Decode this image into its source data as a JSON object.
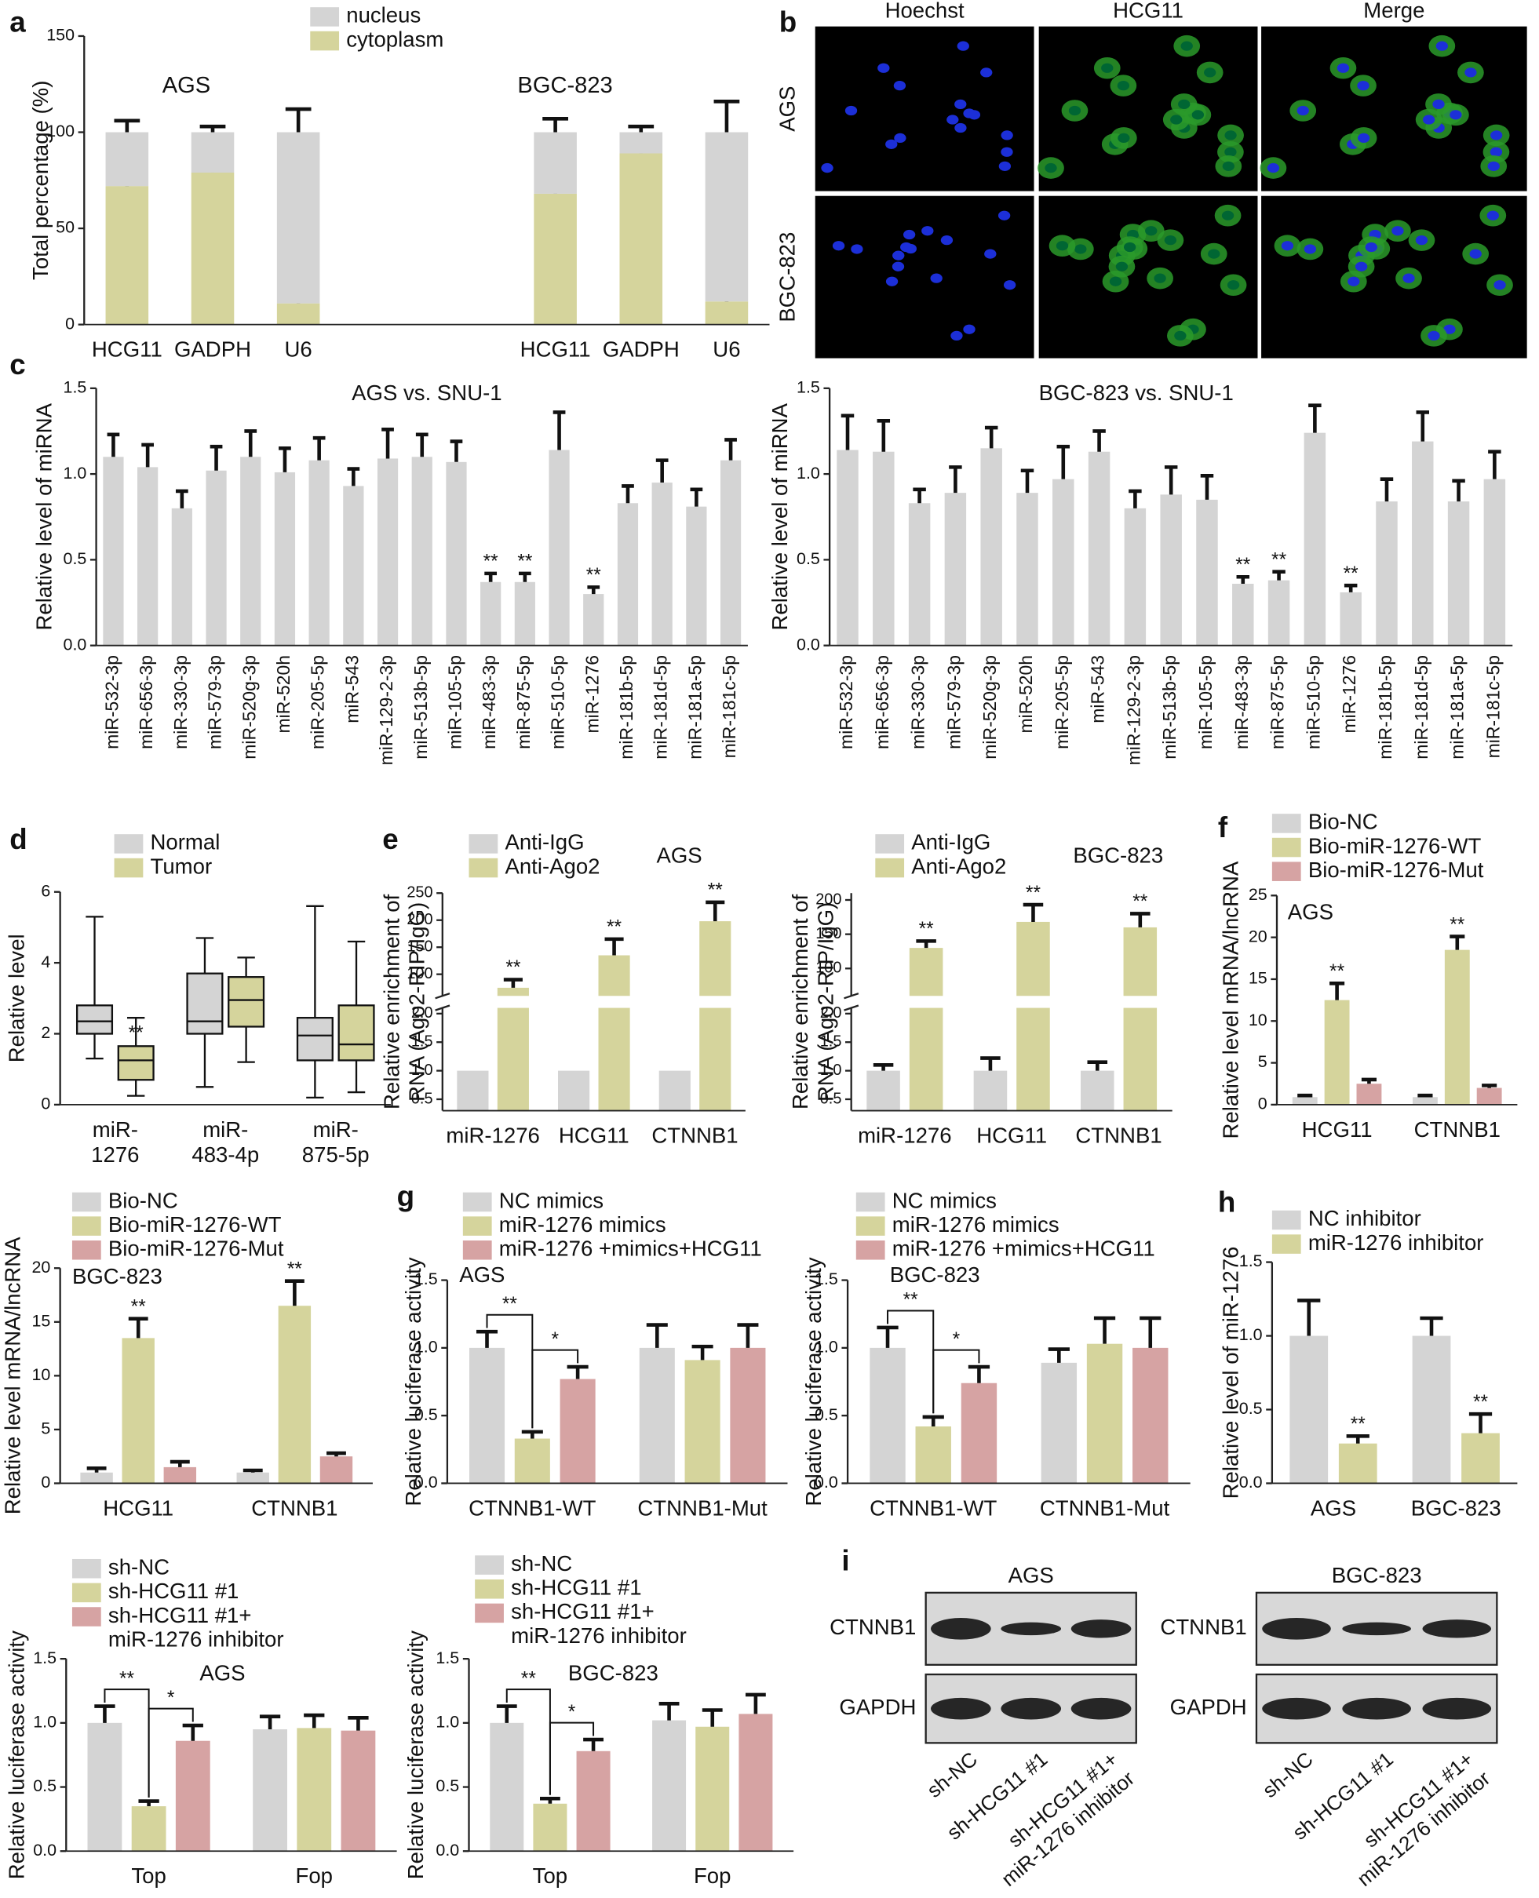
{
  "chart_data": [
    {
      "type": "bar",
      "panel": "a",
      "stacked": true,
      "ylabel": "Total percentage (%)",
      "annotations": [
        "AGS",
        "BGC-823"
      ],
      "categories": [
        "HCG11",
        "GADPH",
        "U6",
        null,
        null,
        "HCG11",
        "GADPH",
        "U6"
      ],
      "series": [
        {
          "name": "nucleus",
          "color": "#d4d4d4",
          "values": [
            28,
            21,
            89,
            null,
            null,
            32,
            11,
            88
          ],
          "errors": [
            6,
            3,
            12,
            null,
            null,
            7,
            3,
            16
          ]
        },
        {
          "name": "cytoplasm",
          "color": "#d5d49c",
          "values": [
            72,
            79,
            11,
            null,
            null,
            68,
            89,
            12
          ],
          "errors": [
            12,
            13,
            10,
            null,
            null,
            10,
            6,
            4
          ]
        }
      ],
      "ylim": [
        0,
        150
      ],
      "yticks": [
        0,
        50,
        100,
        150
      ]
    },
    {
      "type": "image",
      "panel": "b",
      "columns": [
        "Hoechst",
        "HCG11",
        "Merge"
      ],
      "rows": [
        "AGS",
        "BGC-823"
      ]
    },
    {
      "type": "bar",
      "panel": "c",
      "title": "AGS vs. SNU-1",
      "ylabel": "Relative level of miRNA",
      "rotate_labels": true,
      "highlight_color": "#e8191e",
      "categories": [
        "miR-532-3p",
        "miR-656-3p",
        "miR-330-3p",
        "miR-579-3p",
        "miR-520g-3p",
        "miR-520h",
        "miR-205-5p",
        "miR-543",
        "miR-129-2-3p",
        "miR-513b-5p",
        "miR-105-5p",
        "miR-483-3p",
        "miR-875-5p",
        "miR-510-5p",
        "miR-1276",
        "miR-181b-5p",
        "miR-181d-5p",
        "miR-181a-5p",
        "miR-181c-5p"
      ],
      "highlighted": [
        false,
        false,
        false,
        false,
        false,
        false,
        false,
        false,
        false,
        false,
        false,
        true,
        true,
        false,
        true,
        false,
        false,
        false,
        false
      ],
      "series": [
        {
          "color": "#d4d4d4",
          "values": [
            1.1,
            1.04,
            0.8,
            1.02,
            1.1,
            1.01,
            1.08,
            0.93,
            1.09,
            1.1,
            1.07,
            0.37,
            0.37,
            1.14,
            0.3,
            0.83,
            0.95,
            0.81,
            1.08
          ],
          "errors": [
            0.13,
            0.13,
            0.1,
            0.14,
            0.15,
            0.14,
            0.13,
            0.1,
            0.17,
            0.13,
            0.12,
            0.05,
            0.05,
            0.22,
            0.04,
            0.1,
            0.13,
            0.1,
            0.12
          ],
          "significance": [
            null,
            null,
            null,
            null,
            null,
            null,
            null,
            null,
            null,
            null,
            null,
            "**",
            "**",
            null,
            "**",
            null,
            null,
            null,
            null
          ]
        }
      ],
      "ylim": [
        0,
        1.5
      ],
      "yticks": [
        {
          "value": 0,
          "label": "0.0"
        },
        0.5,
        {
          "value": 1,
          "label": "1.0"
        },
        1.5
      ]
    },
    {
      "type": "bar",
      "title": "BGC-823  vs. SNU-1",
      "ylabel": "Relative level of miRNA",
      "rotate_labels": true,
      "highlight_color": "#e8191e",
      "categories": [
        "miR-532-3p",
        "miR-656-3p",
        "miR-330-3p",
        "miR-579-3p",
        "miR-520g-3p",
        "miR-520h",
        "miR-205-5p",
        "miR-543",
        "miR-129-2-3p",
        "miR-513b-5p",
        "miR-105-5p",
        "miR-483-3p",
        "miR-875-5p",
        "miR-510-5p",
        "miR-1276",
        "miR-181b-5p",
        "miR-181d-5p",
        "miR-181a-5p",
        "miR-181c-5p"
      ],
      "highlighted": [
        false,
        false,
        false,
        false,
        false,
        false,
        false,
        false,
        false,
        false,
        false,
        true,
        true,
        false,
        true,
        false,
        false,
        false,
        false
      ],
      "series": [
        {
          "color": "#d4d4d4",
          "values": [
            1.14,
            1.13,
            0.83,
            0.89,
            1.15,
            0.89,
            0.97,
            1.13,
            0.8,
            0.88,
            0.85,
            0.36,
            0.38,
            1.24,
            0.31,
            0.84,
            1.19,
            0.84,
            0.97
          ],
          "errors": [
            0.2,
            0.18,
            0.08,
            0.15,
            0.12,
            0.13,
            0.19,
            0.12,
            0.1,
            0.16,
            0.14,
            0.04,
            0.05,
            0.16,
            0.04,
            0.13,
            0.17,
            0.12,
            0.16
          ],
          "significance": [
            null,
            null,
            null,
            null,
            null,
            null,
            null,
            null,
            null,
            null,
            null,
            "**",
            "**",
            null,
            "**",
            null,
            null,
            null,
            null
          ]
        }
      ],
      "ylim": [
        0,
        1.5
      ],
      "yticks": [
        {
          "value": 0,
          "label": "0.0"
        },
        0.5,
        {
          "value": 1,
          "label": "1.0"
        },
        1.5
      ]
    },
    {
      "type": "box",
      "panel": "d",
      "ylabel": "Relative level",
      "categories": [
        [
          "miR-",
          "1276"
        ],
        [
          "miR-",
          "483-4p"
        ],
        [
          "miR-",
          "875-5p"
        ]
      ],
      "series": [
        {
          "name": "Normal",
          "color": "#d4d4d4",
          "min": [
            1.3,
            0.5,
            0.2
          ],
          "q1": [
            2.0,
            2.0,
            1.25
          ],
          "median": [
            2.35,
            2.35,
            1.95
          ],
          "q3": [
            2.8,
            3.7,
            2.45
          ],
          "max": [
            5.3,
            4.7,
            5.6
          ]
        },
        {
          "name": "Tumor",
          "color": "#d5d49c",
          "min": [
            0.25,
            1.2,
            0.35
          ],
          "q1": [
            0.7,
            2.2,
            1.25
          ],
          "median": [
            1.25,
            2.95,
            1.7
          ],
          "q3": [
            1.65,
            3.6,
            2.8
          ],
          "max": [
            2.45,
            4.15,
            4.6
          ],
          "significance": [
            "**",
            null,
            null
          ]
        }
      ],
      "ylim": [
        0,
        6
      ],
      "yticks": [
        0,
        2,
        4,
        6
      ]
    },
    {
      "type": "bar",
      "panel": "e",
      "title": "AGS",
      "ylabel": [
        "Relative enrichment of",
        "RNA (Ago2-RIP/IgG)"
      ],
      "categories": [
        "miR-1276",
        "HCG11",
        "CTNNB1"
      ],
      "series": [
        {
          "name": "Anti-IgG",
          "color": "#d4d4d4",
          "values": [
            1,
            1,
            1
          ]
        },
        {
          "name": "Anti-Ago2",
          "color": "#d5d49c",
          "values": [
            75,
            135,
            198
          ],
          "errors": [
            15,
            30,
            35
          ],
          "significance": [
            "**",
            "**",
            "**"
          ]
        }
      ],
      "ylim": [
        0.3,
        250
      ],
      "ybreak": [
        2.1,
        60
      ],
      "yticks": [
        0.5,
        {
          "value": 1,
          "label": "1.0"
        },
        1.5,
        {
          "value": 2,
          "label": "2.0"
        },
        100,
        150,
        200,
        250
      ]
    },
    {
      "type": "bar",
      "title": "BGC-823",
      "ylabel": [
        "Relative enrichment of",
        "RNA (Ago2-RIP/IgG)"
      ],
      "categories": [
        "miR-1276",
        "HCG11",
        "CTNNB1"
      ],
      "series": [
        {
          "name": "Anti-IgG",
          "color": "#d4d4d4",
          "values": [
            1,
            1,
            1
          ],
          "errors": [
            0.1,
            0.22,
            0.15
          ]
        },
        {
          "name": "Anti-Ago2",
          "color": "#d5d49c",
          "values": [
            130,
            168,
            160
          ],
          "errors": [
            10,
            25,
            20
          ],
          "significance": [
            "**",
            "**",
            "**"
          ]
        }
      ],
      "ylim": [
        0.3,
        210
      ],
      "ybreak": [
        2.1,
        60
      ],
      "yticks": [
        0.5,
        {
          "value": 1,
          "label": "1.0"
        },
        1.5,
        {
          "value": 2,
          "label": "2.0"
        },
        100,
        150,
        200
      ]
    },
    {
      "type": "bar",
      "panel": "f",
      "title": "AGS",
      "ylabel": "Relative level mRNA/lncRNA",
      "categories": [
        "HCG11",
        "CTNNB1"
      ],
      "series": [
        {
          "name": "Bio-NC",
          "color": "#d4d4d4",
          "values": [
            0.9,
            0.9
          ],
          "errors": [
            0.2,
            0.2
          ]
        },
        {
          "name": "Bio-miR-1276-WT",
          "color": "#d5d49c",
          "values": [
            12.5,
            18.5
          ],
          "errors": [
            2,
            1.6
          ],
          "significance": [
            "**",
            "**"
          ]
        },
        {
          "name": "Bio-miR-1276-Mut",
          "color": "#d6a3a3",
          "values": [
            2.5,
            2.0
          ],
          "errors": [
            0.5,
            0.3
          ]
        }
      ],
      "ylim": [
        0,
        25
      ],
      "yticks": [
        0,
        5,
        10,
        15,
        20,
        25
      ]
    },
    {
      "type": "bar",
      "title": "BGC-823",
      "ylabel": "Relative level mRNA/lncRNA",
      "categories": [
        "HCG11",
        "CTNNB1"
      ],
      "series": [
        {
          "name": "Bio-NC",
          "color": "#d4d4d4",
          "values": [
            1.0,
            1.0
          ],
          "errors": [
            0.4,
            0.2
          ]
        },
        {
          "name": "Bio-miR-1276-WT",
          "color": "#d5d49c",
          "values": [
            13.5,
            16.5
          ],
          "errors": [
            1.8,
            2.3
          ],
          "significance": [
            "**",
            "**"
          ]
        },
        {
          "name": "Bio-miR-1276-Mut",
          "color": "#d6a3a3",
          "values": [
            1.5,
            2.5
          ],
          "errors": [
            0.5,
            0.3
          ]
        }
      ],
      "ylim": [
        0,
        20
      ],
      "yticks": [
        0,
        5,
        10,
        15,
        20
      ]
    },
    {
      "type": "bar",
      "panel": "g",
      "title": "AGS",
      "ylabel": "Relative luciferase activity",
      "brackets": [
        "**",
        "*"
      ],
      "categories": [
        "CTNNB1-WT",
        "CTNNB1-Mut"
      ],
      "series": [
        {
          "name": "NC mimics",
          "color": "#d4d4d4",
          "values": [
            1.0,
            1.0
          ],
          "errors": [
            0.12,
            0.17
          ]
        },
        {
          "name": "miR-1276 mimics",
          "color": "#d5d49c",
          "values": [
            0.33,
            0.91
          ],
          "errors": [
            0.05,
            0.1
          ]
        },
        {
          "name": "miR-1276 +mimics+HCG11",
          "color": "#d6a3a3",
          "values": [
            0.77,
            1.0
          ],
          "errors": [
            0.09,
            0.17
          ]
        }
      ],
      "ylim": [
        0,
        1.5
      ],
      "yticks": [
        {
          "value": 0,
          "label": "0.0"
        },
        0.5,
        {
          "value": 1,
          "label": "1.0"
        },
        1.5
      ]
    },
    {
      "type": "bar",
      "title": "BGC-823",
      "ylabel": "Relative luciferase activity",
      "brackets": [
        "**",
        "*"
      ],
      "categories": [
        "CTNNB1-WT",
        "CTNNB1-Mut"
      ],
      "series": [
        {
          "name": "NC mimics",
          "color": "#d4d4d4",
          "values": [
            1.0,
            0.89
          ],
          "errors": [
            0.15,
            0.1
          ]
        },
        {
          "name": "miR-1276 mimics",
          "color": "#d5d49c",
          "values": [
            0.42,
            1.03
          ],
          "errors": [
            0.07,
            0.19
          ]
        },
        {
          "name": "miR-1276 +mimics+HCG11",
          "color": "#d6a3a3",
          "values": [
            0.74,
            1.0
          ],
          "errors": [
            0.12,
            0.22
          ]
        }
      ],
      "ylim": [
        0,
        1.5
      ],
      "yticks": [
        {
          "value": 0,
          "label": "0.0"
        },
        0.5,
        {
          "value": 1,
          "label": "1.0"
        },
        1.5
      ]
    },
    {
      "type": "bar",
      "panel": "h",
      "ylabel": "Relative level of miR-1276",
      "categories": [
        "AGS",
        "BGC-823"
      ],
      "series": [
        {
          "name": "NC  inhibitor",
          "color": "#d4d4d4",
          "values": [
            1.0,
            1.0
          ],
          "errors": [
            0.24,
            0.12
          ]
        },
        {
          "name": "miR-1276 inhibitor",
          "color": "#d5d49c",
          "values": [
            0.27,
            0.34
          ],
          "errors": [
            0.05,
            0.13
          ],
          "significance": [
            "**",
            "**"
          ]
        }
      ],
      "ylim": [
        0,
        1.5
      ],
      "yticks": [
        {
          "value": 0,
          "label": "0.0"
        },
        0.5,
        {
          "value": 1,
          "label": "1.0"
        },
        1.5
      ]
    },
    {
      "type": "bar",
      "title": "AGS",
      "ylabel": "Relative luciferase activity",
      "brackets": [
        "**",
        "*"
      ],
      "categories": [
        "Top",
        "Fop"
      ],
      "series": [
        {
          "name": "sh-NC",
          "color": "#d4d4d4",
          "values": [
            1.0,
            0.95
          ],
          "errors": [
            0.13,
            0.1
          ]
        },
        {
          "name": "sh-HCG11 #1",
          "color": "#d5d49c",
          "values": [
            0.35,
            0.96
          ],
          "errors": [
            0.04,
            0.1
          ]
        },
        {
          "name": [
            "sh-HCG11 #1+",
            "miR-1276 inhibitor"
          ],
          "color": "#d6a3a3",
          "values": [
            0.86,
            0.94
          ],
          "errors": [
            0.12,
            0.1
          ]
        }
      ],
      "ylim": [
        0,
        1.5
      ],
      "yticks": [
        {
          "value": 0,
          "label": "0.0"
        },
        0.5,
        {
          "value": 1,
          "label": "1.0"
        },
        1.5
      ]
    },
    {
      "type": "bar",
      "title": "BGC-823",
      "ylabel": "Relative luciferase activity",
      "brackets": [
        "**",
        "*"
      ],
      "categories": [
        "Top",
        "Fop"
      ],
      "series": [
        {
          "name": "sh-NC",
          "color": "#d4d4d4",
          "values": [
            1.0,
            1.02
          ],
          "errors": [
            0.13,
            0.13
          ]
        },
        {
          "name": "sh-HCG11 #1",
          "color": "#d5d49c",
          "values": [
            0.37,
            0.97
          ],
          "errors": [
            0.04,
            0.13
          ]
        },
        {
          "name": [
            "sh-HCG11 #1+",
            "miR-1276 inhibitor"
          ],
          "color": "#d6a3a3",
          "values": [
            0.78,
            1.07
          ],
          "errors": [
            0.09,
            0.15
          ]
        }
      ],
      "ylim": [
        0,
        1.5
      ],
      "yticks": [
        {
          "value": 0,
          "label": "0.0"
        },
        0.5,
        {
          "value": 1,
          "label": "1.0"
        },
        1.5
      ]
    },
    {
      "type": "blot",
      "panel": "i",
      "blots": [
        "AGS",
        "BGC-823"
      ],
      "proteins": [
        "CTNNB1",
        "GAPDH"
      ],
      "lanes": [
        "sh-NC",
        "sh-HCG11 #1",
        [
          "sh-HCG11 #1+",
          "miR-1276 inhibitor"
        ]
      ]
    }
  ]
}
